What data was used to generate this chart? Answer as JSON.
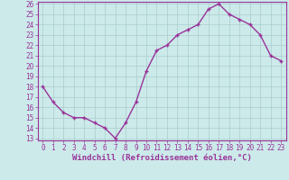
{
  "x": [
    0,
    1,
    2,
    3,
    4,
    5,
    6,
    7,
    8,
    9,
    10,
    11,
    12,
    13,
    14,
    15,
    16,
    17,
    18,
    19,
    20,
    21,
    22,
    23
  ],
  "y": [
    18,
    16.5,
    15.5,
    15,
    15,
    14.5,
    14,
    13,
    14.5,
    16.5,
    19.5,
    21.5,
    22,
    23,
    23.5,
    24,
    25.5,
    26,
    25,
    24.5,
    24,
    23,
    21,
    20.5
  ],
  "line_color": "#993399",
  "marker": "+",
  "bg_color": "#cceaea",
  "grid_color": "#aacccc",
  "axis_color": "#993399",
  "border_color": "#993399",
  "xlabel": "Windchill (Refroidissement éolien,°C)",
  "xlim": [
    -0.5,
    23.5
  ],
  "ylim": [
    13,
    26
  ],
  "yticks": [
    13,
    14,
    15,
    16,
    17,
    18,
    19,
    20,
    21,
    22,
    23,
    24,
    25,
    26
  ],
  "xticks": [
    0,
    1,
    2,
    3,
    4,
    5,
    6,
    7,
    8,
    9,
    10,
    11,
    12,
    13,
    14,
    15,
    16,
    17,
    18,
    19,
    20,
    21,
    22,
    23
  ],
  "xlabel_fontsize": 6.5,
  "tick_fontsize": 5.5,
  "line_width": 1.0,
  "marker_size": 3.5,
  "marker_edge_width": 1.0
}
